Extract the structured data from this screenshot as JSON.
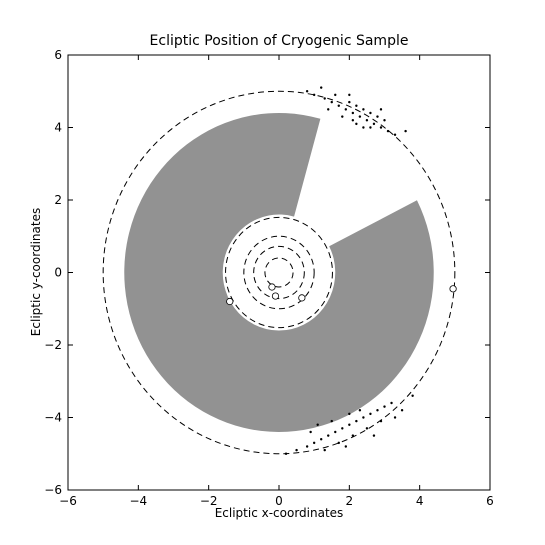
{
  "chart_data": {
    "type": "scatter",
    "title": "Ecliptic Position of Cryogenic Sample",
    "x_label": "Ecliptic x-coordinates",
    "y_label": "Ecliptic y-coordinates",
    "xlim": [
      -6,
      6
    ],
    "ylim": [
      -6,
      6
    ],
    "xticks": [
      {
        "value": -6,
        "label": "−6"
      },
      {
        "value": -4,
        "label": "−4"
      },
      {
        "value": -2,
        "label": "−2"
      },
      0,
      2,
      4,
      6
    ],
    "yticks": [
      {
        "value": -6,
        "label": "−6"
      },
      {
        "value": -4,
        "label": "−4"
      },
      {
        "value": -2,
        "label": "−2"
      },
      0,
      2,
      4,
      6
    ],
    "orbit_radii": [
      0.4,
      0.72,
      1.0,
      1.52,
      5.0
    ],
    "series": [
      {
        "color": "#000000",
        "marker": "dot",
        "x": [
          1.0,
          1.3,
          1.5,
          1.7,
          1.9,
          2.1,
          2.3,
          2.5,
          2.7,
          2.9,
          3.1,
          3.3,
          1.6,
          2.0,
          2.2,
          2.4,
          2.6,
          2.8,
          1.8,
          2.2,
          2.6,
          0.8,
          3.6,
          2.0,
          1.4,
          2.9,
          2.4,
          1.2,
          3.0,
          2.1,
          0.5,
          0.8,
          1.0,
          1.2,
          1.4,
          1.6,
          1.8,
          2.0,
          2.2,
          2.4,
          2.6,
          2.8,
          3.0,
          3.2,
          1.3,
          1.7,
          2.1,
          2.5,
          2.9,
          0.9,
          1.5,
          2.3,
          3.5,
          3.8,
          0.2,
          1.9,
          2.7,
          1.1,
          3.3,
          2.0
        ],
        "y": [
          4.9,
          4.8,
          4.7,
          4.6,
          4.5,
          4.4,
          4.3,
          4.2,
          4.1,
          4.0,
          3.9,
          3.8,
          4.9,
          4.7,
          4.6,
          4.5,
          4.4,
          4.3,
          4.3,
          4.1,
          4.0,
          5.0,
          3.9,
          4.9,
          4.5,
          4.5,
          4.0,
          5.1,
          4.2,
          4.2,
          -4.9,
          -4.8,
          -4.7,
          -4.6,
          -4.5,
          -4.4,
          -4.3,
          -4.2,
          -4.1,
          -4.0,
          -3.9,
          -3.8,
          -3.7,
          -3.6,
          -4.9,
          -4.7,
          -4.5,
          -4.3,
          -4.1,
          -4.4,
          -4.1,
          -3.8,
          -3.8,
          -3.4,
          -5.0,
          -4.8,
          -4.5,
          -4.2,
          -4.0,
          -3.9
        ]
      },
      {
        "color": "#000000",
        "marker": "open",
        "x": [
          -0.2,
          -0.1,
          0.65,
          -1.4,
          4.95
        ],
        "y": [
          -0.4,
          -0.65,
          -0.7,
          -0.8,
          -0.45
        ]
      }
    ]
  }
}
